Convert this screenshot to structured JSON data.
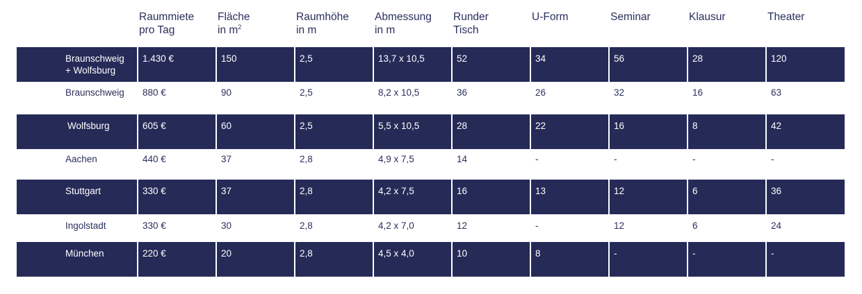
{
  "table": {
    "headers": [
      {
        "line1": "Raummiete",
        "line2": "pro Tag"
      },
      {
        "line1": "Fläche",
        "line2": "in m",
        "sup": "2"
      },
      {
        "line1": "Raumhöhe",
        "line2": "in m"
      },
      {
        "line1": "Abmessung",
        "line2": "in m"
      },
      {
        "line1": "Runder",
        "line2": "Tisch"
      },
      {
        "line1": "U-Form",
        "line2": ""
      },
      {
        "line1": "Seminar",
        "line2": ""
      },
      {
        "line1": "Klausur",
        "line2": ""
      },
      {
        "line1": "Theater",
        "line2": ""
      }
    ],
    "rows": [
      {
        "name": "Braunschweig\n+ Wolfsburg",
        "cells": [
          "1.430 €",
          "150",
          "2,5",
          "13,7 x 10,5",
          "52",
          "34",
          "56",
          "28",
          "120"
        ]
      },
      {
        "name": "Braunschweig",
        "cells": [
          "880 €",
          "90",
          "2,5",
          "8,2 x 10,5",
          "36",
          "26",
          "32",
          "16",
          "63"
        ]
      },
      {
        "name": " Wolfsburg",
        "cells": [
          "605 €",
          "60",
          "2,5",
          "5,5 x 10,5",
          "28",
          "22",
          "16",
          "8",
          "42"
        ]
      },
      {
        "name": "Aachen",
        "cells": [
          "440 €",
          "37",
          "2,8",
          "4,9 x 7,5",
          "14",
          "-",
          "-",
          "-",
          "-"
        ]
      },
      {
        "name": "Stuttgart",
        "cells": [
          "330 €",
          "37",
          "2,8",
          "4,2 x 7,5",
          "16",
          "13",
          "12",
          "6",
          "36"
        ]
      },
      {
        "name": "Ingolstadt",
        "cells": [
          "330 €",
          "30",
          "2,8",
          "4,2 x 7,0",
          "12",
          "-",
          "12",
          "6",
          "24"
        ]
      },
      {
        "name": "München",
        "cells": [
          "220 €",
          "20",
          "2,8",
          "4,5 x 4,0",
          "10",
          "8",
          "-",
          "-",
          "-"
        ]
      }
    ]
  },
  "colors": {
    "dark_row": "#252a57",
    "text": "#2a2f5c"
  }
}
